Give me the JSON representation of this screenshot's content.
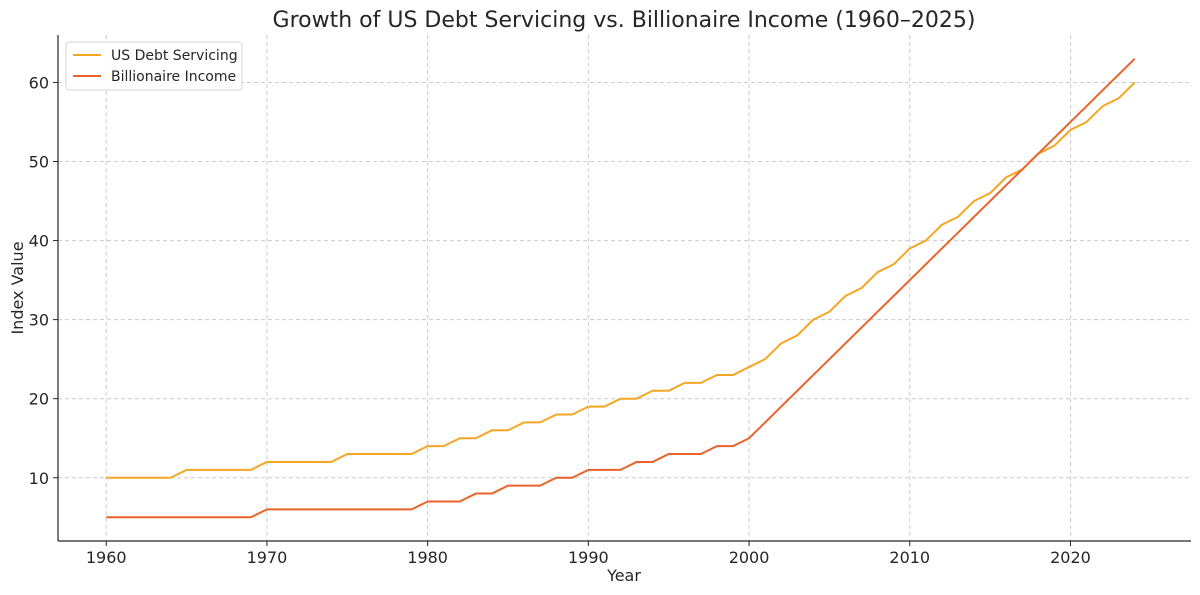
{
  "chart_data": {
    "type": "line",
    "title": "Growth of US Debt Servicing vs. Billionaire Income (1960–2025)",
    "xlabel": "Year",
    "ylabel": "Index Value",
    "xlim": [
      1957,
      2027.5
    ],
    "ylim": [
      2,
      66
    ],
    "xticks": [
      1960,
      1970,
      1980,
      1990,
      2000,
      2010,
      2020
    ],
    "yticks": [
      10,
      20,
      30,
      40,
      50,
      60
    ],
    "grid": true,
    "legend": "top-left",
    "x": [
      1960,
      1961,
      1962,
      1963,
      1964,
      1965,
      1966,
      1967,
      1968,
      1969,
      1970,
      1971,
      1972,
      1973,
      1974,
      1975,
      1976,
      1977,
      1978,
      1979,
      1980,
      1981,
      1982,
      1983,
      1984,
      1985,
      1986,
      1987,
      1988,
      1989,
      1990,
      1991,
      1992,
      1993,
      1994,
      1995,
      1996,
      1997,
      1998,
      1999,
      2000,
      2001,
      2002,
      2003,
      2004,
      2005,
      2006,
      2007,
      2008,
      2009,
      2010,
      2011,
      2012,
      2013,
      2014,
      2015,
      2016,
      2017,
      2018,
      2019,
      2020,
      2021,
      2022,
      2023,
      2024
    ],
    "series": [
      {
        "name": "US Debt Servicing",
        "color": "#f5a623",
        "values": [
          10,
          10,
          10,
          10,
          10,
          11,
          11,
          11,
          11,
          11,
          12,
          12,
          12,
          12,
          12,
          13,
          13,
          13,
          13,
          13,
          14,
          14,
          15,
          15,
          16,
          16,
          17,
          17,
          18,
          18,
          19,
          19,
          20,
          20,
          21,
          21,
          22,
          22,
          23,
          23,
          24,
          25,
          27,
          28,
          30,
          31,
          33,
          34,
          36,
          37,
          39,
          40,
          42,
          43,
          45,
          46,
          48,
          49,
          51,
          52,
          54,
          55,
          57,
          58,
          60
        ]
      },
      {
        "name": "Billionaire Income",
        "color": "#e8632a",
        "values": [
          5,
          5,
          5,
          5,
          5,
          5,
          5,
          5,
          5,
          5,
          6,
          6,
          6,
          6,
          6,
          6,
          6,
          6,
          6,
          6,
          7,
          7,
          7,
          8,
          8,
          9,
          9,
          9,
          10,
          10,
          11,
          11,
          11,
          12,
          12,
          13,
          13,
          13,
          14,
          14,
          15,
          17,
          19,
          21,
          23,
          25,
          27,
          29,
          31,
          33,
          35,
          37,
          39,
          41,
          43,
          45,
          47,
          49,
          51,
          53,
          55,
          57,
          59,
          61,
          63
        ]
      }
    ]
  }
}
